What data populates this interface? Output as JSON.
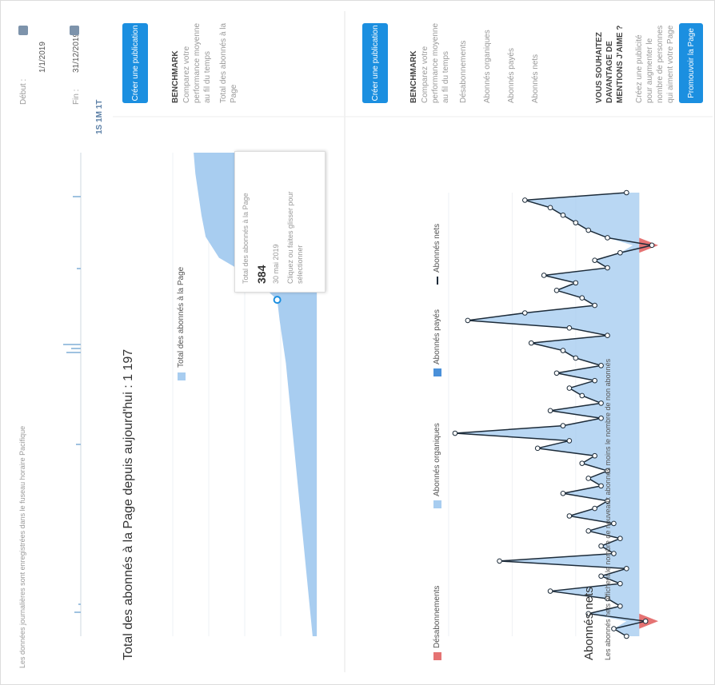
{
  "note": "Les données journalières sont enregistrées dans le fuseau horaire Pacifique",
  "range_buttons": [
    "1S",
    "1M",
    "1T"
  ],
  "date_start_label": "Début :",
  "date_start": "1/1/2019",
  "date_end_label": "Fin :",
  "date_end": "31/12/2019",
  "section1": {
    "title": "Total des abonnés à la Page depuis aujourd'hui : 1 197",
    "button": "Créer une publication",
    "benchmark_title": "BENCHMARK",
    "benchmark_text": "Comparez votre performance moyenne au fil du temps",
    "benchmark_items": [
      "Total des abonnés à la Page"
    ],
    "tooltip": {
      "title": "Total des abonnés à la Page",
      "value": 384,
      "date": "30 mai 2019",
      "hint": "Cliquez ou faites glisser pour sélectionner"
    }
  },
  "section2": {
    "title": "Abonnés nets",
    "subtitle": "Les abonnés nets affichent le nombre de nouveaux abonnés moins le nombre de non abonnés",
    "button": "Créer une publication",
    "benchmark_title": "BENCHMARK",
    "benchmark_text": "Comparez votre performance moyenne au fil du temps",
    "benchmark_items": [
      "Désabonnements",
      "Abonnés organiques",
      "Abonnés payés",
      "Abonnés nets"
    ],
    "promo_title": "VOUS SOUHAITEZ DAVANTAGE DE MENTIONS J'AIME ?",
    "promo_text": "Créez une publicité pour augmenter le nombre de personnes qui aiment votre Page",
    "promo_button": "Promouvoir la Page"
  },
  "chart_data": [
    {
      "type": "area",
      "ylim": [
        0,
        1400
      ],
      "yticks": [
        0,
        350,
        700,
        1050,
        1400
      ],
      "grid": true,
      "series": [
        {
          "name": "Total des abonnés à la Page",
          "color": "#a8cdf0",
          "values": [
            40,
            60,
            80,
            100,
            120,
            140,
            160,
            180,
            200,
            220,
            240,
            260,
            280,
            300,
            330,
            360,
            384,
            600,
            950,
            1080,
            1120,
            1150,
            1180,
            1197
          ]
        }
      ]
    },
    {
      "type": "line",
      "ylim": [
        -4,
        30
      ],
      "yticks": [
        0,
        10,
        20,
        30
      ],
      "grid": true,
      "series": [
        {
          "name": "Désabonnements",
          "color": "#e57373",
          "values": [
            0,
            0,
            3,
            0,
            0,
            0,
            0,
            0,
            0,
            0,
            0,
            0,
            0,
            0,
            0,
            0,
            0,
            0,
            0,
            0,
            0,
            0,
            0,
            0,
            0,
            0,
            0,
            0,
            0,
            0,
            0,
            0,
            0,
            0,
            0,
            0,
            0,
            0,
            0,
            0,
            0,
            0,
            0,
            0,
            0,
            0,
            0,
            0,
            0,
            0,
            0,
            0,
            3,
            0,
            0,
            0,
            0,
            0,
            0,
            0
          ]
        },
        {
          "name": "Abonnés organiques",
          "color": "#a8cdf0",
          "values": [
            2,
            4,
            2,
            8,
            3,
            5,
            14,
            3,
            6,
            2,
            22,
            4,
            6,
            3,
            8,
            4,
            11,
            7,
            5,
            12,
            6,
            8,
            5,
            9,
            7,
            16,
            11,
            29,
            12,
            6,
            14,
            6,
            9,
            11,
            7,
            13,
            6,
            10,
            12,
            17,
            5,
            11,
            27,
            18,
            7,
            9,
            13,
            10,
            15,
            5,
            7,
            3,
            1,
            5,
            8,
            10,
            12,
            14,
            18,
            2
          ]
        },
        {
          "name": "Abonnés payés",
          "color": "#4a90d9",
          "values": [
            0,
            0,
            0,
            0,
            0,
            0,
            0,
            0,
            0,
            0,
            0,
            0,
            0,
            0,
            0,
            0,
            0,
            0,
            0,
            0,
            0,
            0,
            0,
            0,
            0,
            0,
            0,
            0,
            0,
            0,
            0,
            0,
            0,
            0,
            0,
            0,
            0,
            0,
            0,
            0,
            0,
            0,
            0,
            0,
            0,
            0,
            0,
            0,
            0,
            0,
            0,
            0,
            0,
            0,
            0,
            0,
            0,
            0,
            0,
            0
          ]
        },
        {
          "name": "Abonnés nets",
          "color": "#1c2b39",
          "values": [
            2,
            4,
            -1,
            8,
            3,
            5,
            14,
            3,
            6,
            2,
            22,
            4,
            6,
            3,
            8,
            4,
            11,
            7,
            5,
            12,
            6,
            8,
            5,
            9,
            7,
            16,
            11,
            29,
            12,
            6,
            14,
            6,
            9,
            11,
            7,
            13,
            6,
            10,
            12,
            17,
            5,
            11,
            27,
            18,
            7,
            9,
            13,
            10,
            15,
            5,
            7,
            3,
            -2,
            5,
            8,
            10,
            12,
            14,
            18,
            2
          ]
        }
      ]
    }
  ]
}
